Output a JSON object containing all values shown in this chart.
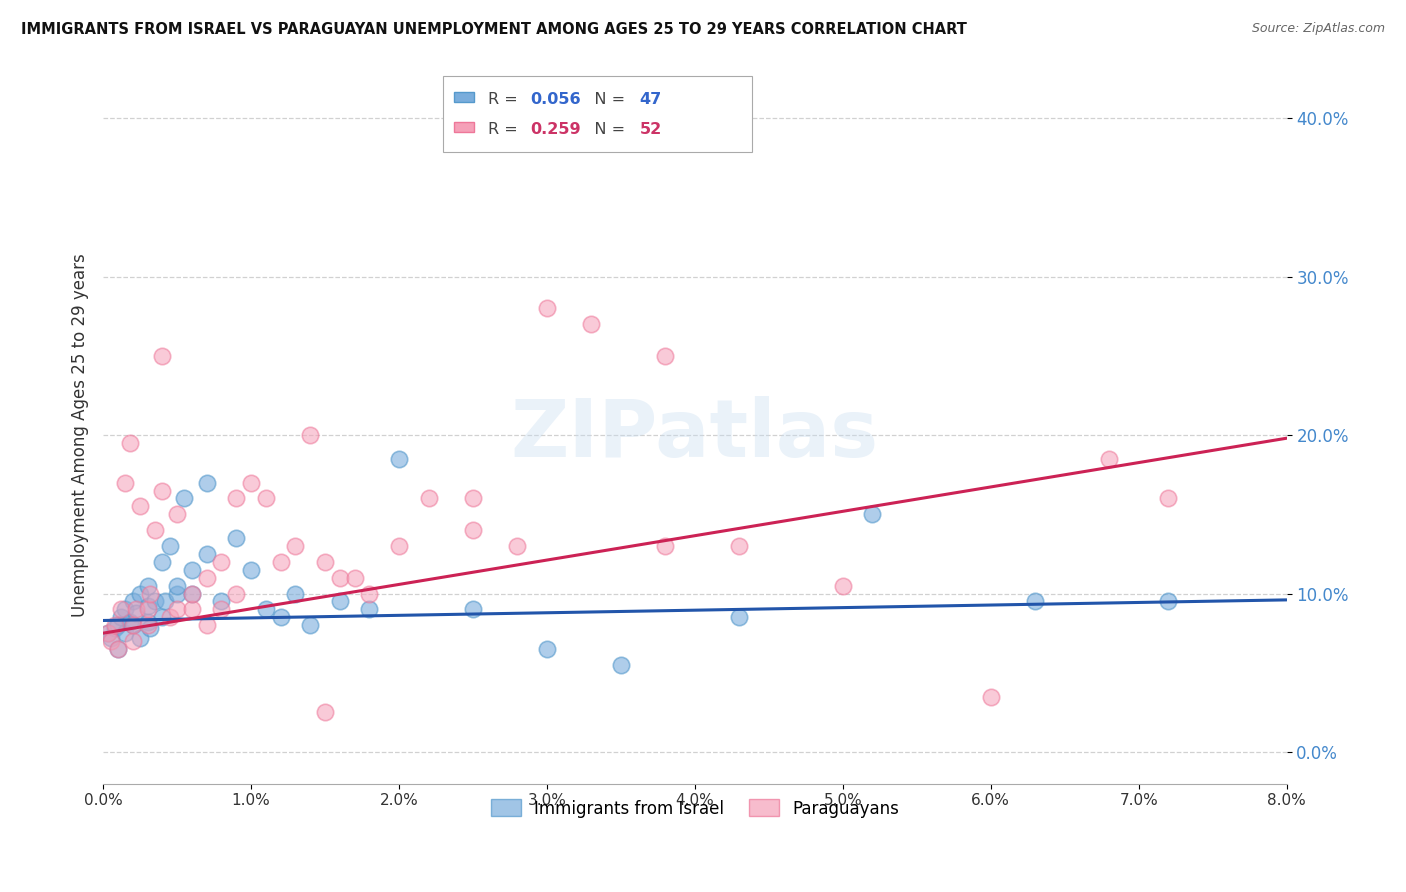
{
  "title": "IMMIGRANTS FROM ISRAEL VS PARAGUAYAN UNEMPLOYMENT AMONG AGES 25 TO 29 YEARS CORRELATION CHART",
  "source": "Source: ZipAtlas.com",
  "ylabel": "Unemployment Among Ages 25 to 29 years",
  "xlim": [
    0.0,
    0.08
  ],
  "ylim": [
    -0.02,
    0.42
  ],
  "series1_label": "Immigrants from Israel",
  "series1_color": "#7aaddc",
  "series1_edge": "#5599cc",
  "series2_label": "Paraguayans",
  "series2_color": "#f5a0b8",
  "series2_edge": "#ee7799",
  "series1_R": 0.056,
  "series1_N": 47,
  "series2_R": 0.259,
  "series2_N": 52,
  "watermark": "ZIPatlas",
  "blue_scatter_x": [
    0.0003,
    0.0005,
    0.0008,
    0.001,
    0.001,
    0.0012,
    0.0015,
    0.0015,
    0.0018,
    0.002,
    0.002,
    0.0022,
    0.0025,
    0.0025,
    0.003,
    0.003,
    0.003,
    0.0032,
    0.0035,
    0.004,
    0.004,
    0.0042,
    0.0045,
    0.005,
    0.005,
    0.0055,
    0.006,
    0.006,
    0.007,
    0.007,
    0.008,
    0.009,
    0.01,
    0.011,
    0.012,
    0.013,
    0.014,
    0.016,
    0.018,
    0.02,
    0.025,
    0.03,
    0.035,
    0.043,
    0.052,
    0.063,
    0.072
  ],
  "blue_scatter_y": [
    0.075,
    0.072,
    0.078,
    0.08,
    0.065,
    0.085,
    0.075,
    0.09,
    0.082,
    0.08,
    0.095,
    0.088,
    0.072,
    0.1,
    0.082,
    0.092,
    0.105,
    0.078,
    0.095,
    0.085,
    0.12,
    0.095,
    0.13,
    0.1,
    0.105,
    0.16,
    0.1,
    0.115,
    0.125,
    0.17,
    0.095,
    0.135,
    0.115,
    0.09,
    0.085,
    0.1,
    0.08,
    0.095,
    0.09,
    0.185,
    0.09,
    0.065,
    0.055,
    0.085,
    0.15,
    0.095,
    0.095
  ],
  "pink_scatter_x": [
    0.0003,
    0.0005,
    0.0008,
    0.001,
    0.0012,
    0.0015,
    0.0018,
    0.002,
    0.002,
    0.0022,
    0.0025,
    0.003,
    0.003,
    0.0032,
    0.0035,
    0.004,
    0.004,
    0.0045,
    0.005,
    0.005,
    0.006,
    0.006,
    0.007,
    0.007,
    0.008,
    0.008,
    0.009,
    0.009,
    0.01,
    0.011,
    0.012,
    0.013,
    0.014,
    0.015,
    0.016,
    0.017,
    0.018,
    0.02,
    0.022,
    0.025,
    0.028,
    0.03,
    0.033,
    0.038,
    0.043,
    0.05,
    0.06,
    0.068,
    0.072,
    0.038,
    0.015,
    0.025
  ],
  "pink_scatter_y": [
    0.075,
    0.07,
    0.08,
    0.065,
    0.09,
    0.17,
    0.195,
    0.07,
    0.08,
    0.09,
    0.155,
    0.08,
    0.09,
    0.1,
    0.14,
    0.165,
    0.25,
    0.085,
    0.09,
    0.15,
    0.09,
    0.1,
    0.11,
    0.08,
    0.09,
    0.12,
    0.1,
    0.16,
    0.17,
    0.16,
    0.12,
    0.13,
    0.2,
    0.12,
    0.11,
    0.11,
    0.1,
    0.13,
    0.16,
    0.14,
    0.13,
    0.28,
    0.27,
    0.25,
    0.13,
    0.105,
    0.035,
    0.185,
    0.16,
    0.13,
    0.025,
    0.16
  ],
  "blue_trendline_x": [
    0.0,
    0.08
  ],
  "blue_trendline_y": [
    0.083,
    0.096
  ],
  "pink_trendline_x": [
    0.0,
    0.08
  ],
  "pink_trendline_y": [
    0.075,
    0.198
  ],
  "ytick_right_vals": [
    0.1,
    0.2,
    0.3,
    0.4
  ],
  "ytick_all_vals": [
    0.0,
    0.1,
    0.2,
    0.3,
    0.4
  ],
  "xtick_vals": [
    0.0,
    0.01,
    0.02,
    0.03,
    0.04,
    0.05,
    0.06,
    0.07,
    0.08
  ],
  "xtick_labels": [
    "0.0%",
    "1.0%",
    "2.0%",
    "3.0%",
    "4.0%",
    "5.0%",
    "6.0%",
    "7.0%",
    "8.0%"
  ]
}
